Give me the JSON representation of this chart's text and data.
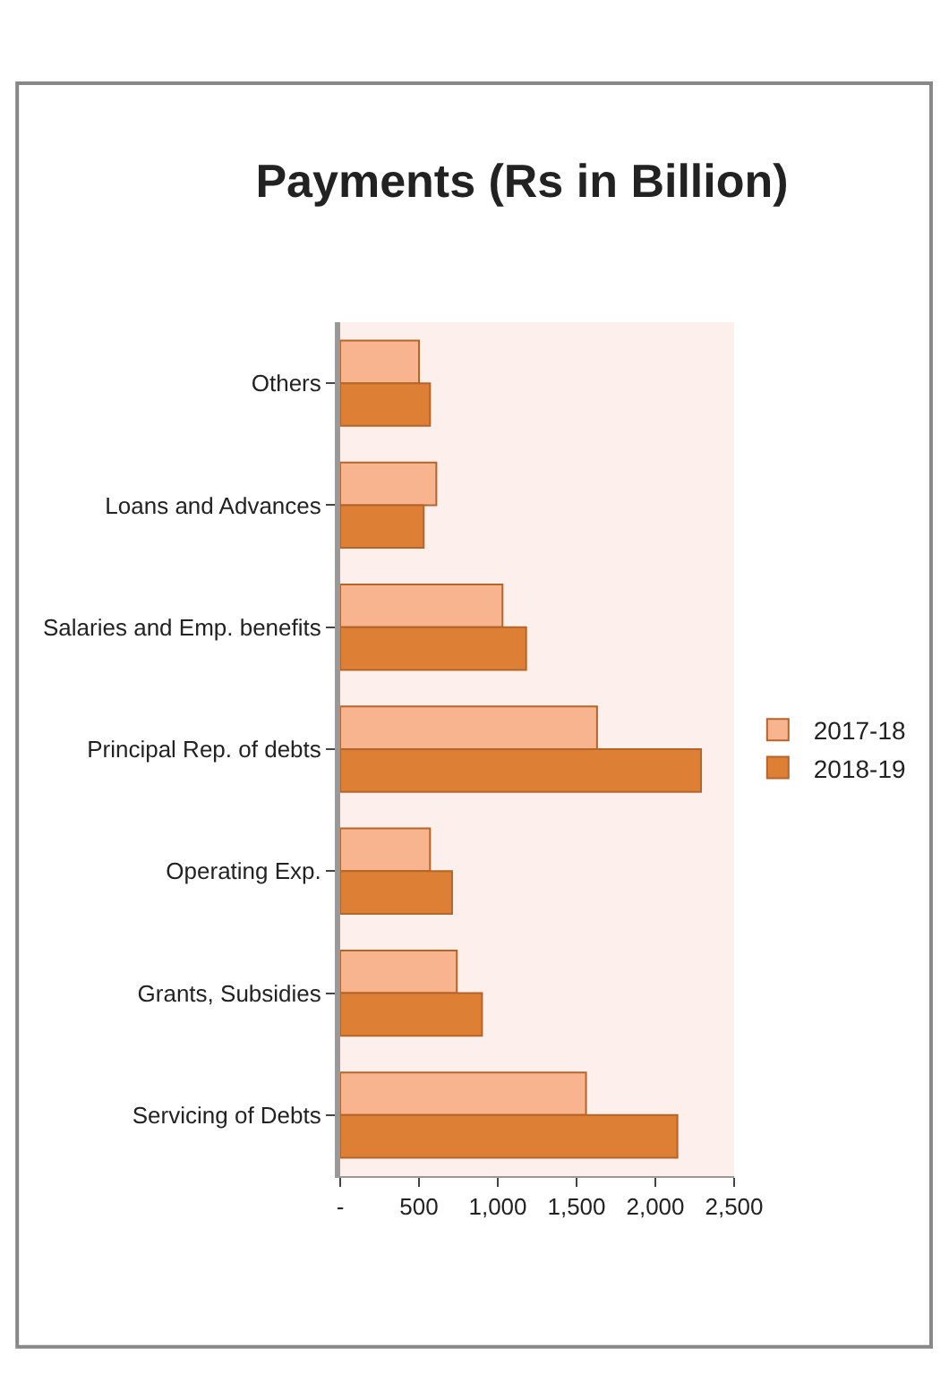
{
  "chart_data": {
    "type": "bar",
    "orientation": "horizontal",
    "title": "Payments (Rs in Billion)",
    "categories": [
      "Others",
      "Loans and Advances",
      "Salaries and Emp. benefits",
      "Principal Rep. of debts",
      "Operating Exp.",
      "Grants, Subsidies",
      "Servicing of Debts"
    ],
    "series": [
      {
        "name": "2017-18",
        "color": "#f7b48f",
        "values": [
          500,
          610,
          1030,
          1630,
          570,
          740,
          1560
        ]
      },
      {
        "name": "2018-19",
        "color": "#dd7f35",
        "values": [
          570,
          530,
          1180,
          2290,
          710,
          900,
          2140
        ]
      }
    ],
    "xlim": [
      0,
      2500
    ],
    "xticks": [
      {
        "value": 0,
        "label": "-"
      },
      {
        "value": 500,
        "label": "500"
      },
      {
        "value": 1000,
        "label": "1,000"
      },
      {
        "value": 1500,
        "label": "1,500"
      },
      {
        "value": 2000,
        "label": "2,000"
      },
      {
        "value": 2500,
        "label": "2,500"
      }
    ],
    "grid": false,
    "legend": "right"
  }
}
